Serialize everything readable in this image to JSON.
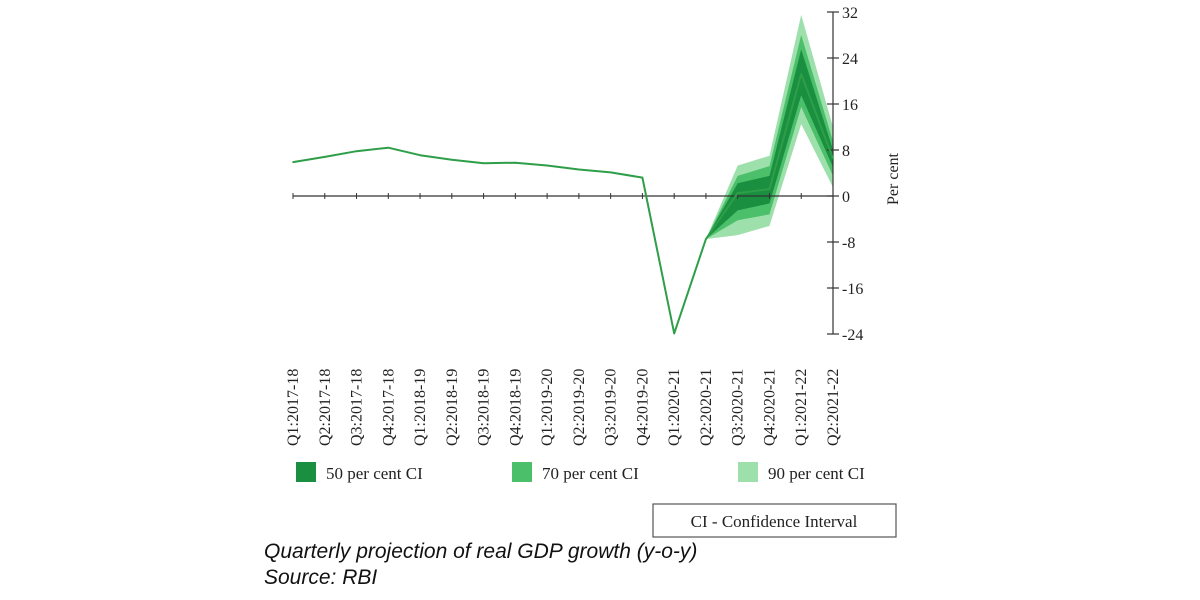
{
  "chart_data": {
    "type": "line",
    "categories": [
      "Q1:2017-18",
      "Q2:2017-18",
      "Q3:2017-18",
      "Q4:2017-18",
      "Q1:2018-19",
      "Q2:2018-19",
      "Q3:2018-19",
      "Q4:2018-19",
      "Q1:2019-20",
      "Q2:2019-20",
      "Q3:2019-20",
      "Q4:2019-20",
      "Q1:2020-21",
      "Q2:2020-21",
      "Q3:2020-21",
      "Q4:2020-21",
      "Q1:2021-22",
      "Q2:2021-22"
    ],
    "series": [
      {
        "values": [
          5.9,
          6.8,
          7.8,
          8.4,
          7.1,
          6.3,
          5.7,
          5.8,
          5.3,
          4.6,
          4.1,
          3.2,
          -23.9,
          -7.5,
          0.5,
          1.2,
          21.2,
          6.5
        ]
      }
    ],
    "bands": [
      {
        "name": "90 per cent CI",
        "x_start": "Q2:2020-21",
        "lower": [
          -7.5,
          -6.8,
          -5.2,
          12.5,
          1.5
        ],
        "upper": [
          -7.5,
          5.3,
          7.0,
          31.5,
          12.0
        ]
      },
      {
        "name": "70 per cent CI",
        "x_start": "Q2:2020-21",
        "lower": [
          -7.5,
          -4.2,
          -3.2,
          15.5,
          3.5
        ],
        "upper": [
          -7.5,
          3.5,
          5.2,
          28.0,
          9.5
        ]
      },
      {
        "name": "50 per cent CI",
        "x_start": "Q2:2020-21",
        "lower": [
          -7.5,
          -2.5,
          -1.3,
          17.5,
          5.0
        ],
        "upper": [
          -7.5,
          2.2,
          3.5,
          25.5,
          8.0
        ]
      }
    ],
    "ylabel": "Per cent",
    "ylim": [
      -24,
      32
    ],
    "yticks": [
      32,
      24,
      16,
      8,
      0,
      -8,
      -16,
      -24
    ],
    "y_axis_side": "right",
    "colors": {
      "line": "#2e9e48",
      "ci50": "#1a8f40",
      "ci70": "#4cbf6a",
      "ci90": "#9ee0ac",
      "axis": "#333333"
    },
    "legend": {
      "position": "bottom",
      "items": [
        {
          "label": "50 per cent CI",
          "color": "#1a8f40"
        },
        {
          "label": "70 per cent CI",
          "color": "#4cbf6a"
        },
        {
          "label": "90 per cent CI",
          "color": "#9ee0ac"
        }
      ],
      "note": "CI - Confidence Interval"
    }
  },
  "caption": {
    "line1": "Quarterly projection of real GDP growth (y-o-y)",
    "line2": "Source: RBI"
  }
}
